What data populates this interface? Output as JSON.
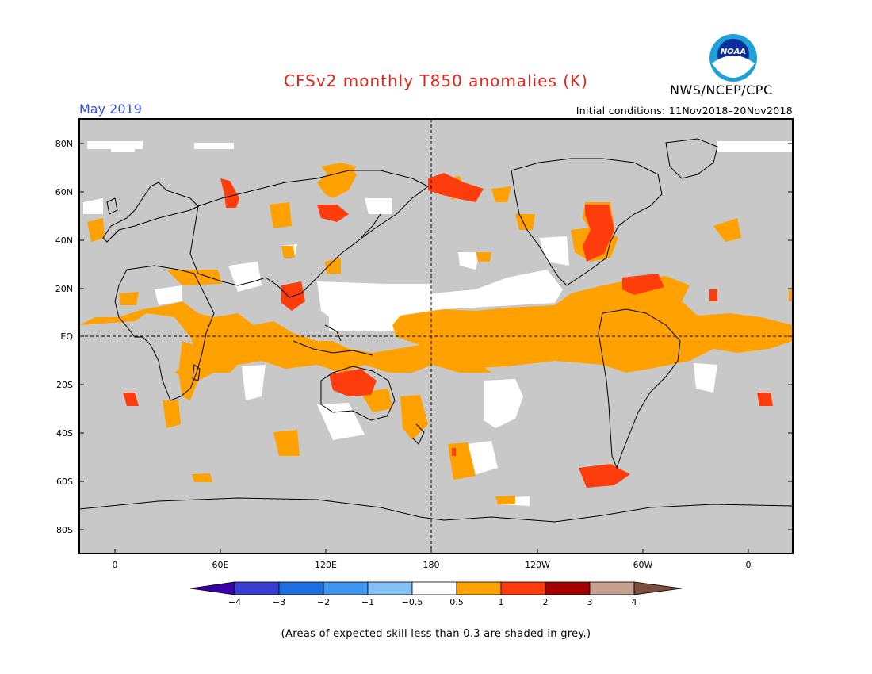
{
  "header": {
    "title": "CFSv2 monthly T850 anomalies (K)",
    "agency": "NWS/NCEP/CPC",
    "valid_month": "May 2019",
    "initial_conditions": "Initial conditions: 11Nov2018–20Nov2018",
    "logo_text": "NOAA"
  },
  "map": {
    "lat_labels": [
      "80N",
      "60N",
      "40N",
      "20N",
      "EQ",
      "20S",
      "40S",
      "60S",
      "80S"
    ],
    "lon_labels": [
      "0",
      "60E",
      "120E",
      "180",
      "120W",
      "60W",
      "0"
    ]
  },
  "colorbar": {
    "labels": [
      "−4",
      "−3",
      "−2",
      "−1",
      "−0.5",
      "0.5",
      "1",
      "2",
      "3",
      "4"
    ],
    "colors": [
      "#3a00a8",
      "#3a3ed0",
      "#1e6fe0",
      "#3e96f0",
      "#82c0f6",
      "#ffffff",
      "#ffa100",
      "#ff3c0c",
      "#a50000",
      "#c8a090",
      "#7a4e3a"
    ],
    "land_mask_color": "#c8c8c8"
  },
  "footer": {
    "note": "(Areas of expected skill less than 0.3 are shaded in grey.)"
  }
}
